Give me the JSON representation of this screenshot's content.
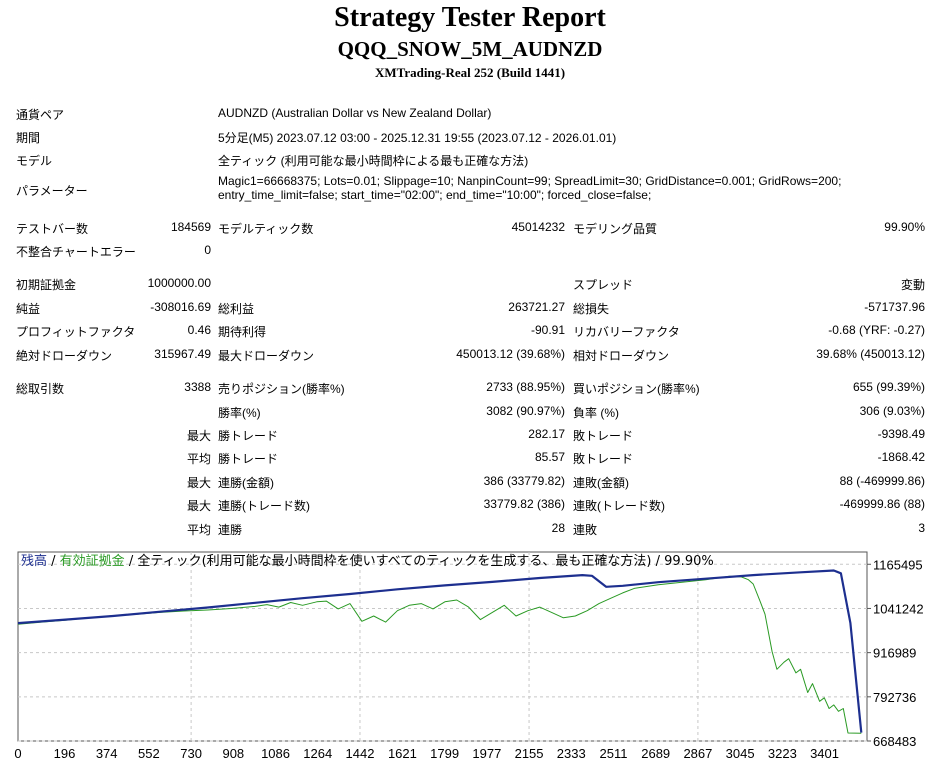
{
  "header": {
    "title": "Strategy Tester Report",
    "subtitle": "QQQ_SNOW_5M_AUDNZD",
    "server": "XMTrading-Real 252 (Build 1441)"
  },
  "info": {
    "pair_label": "通貨ペア",
    "pair_value": "AUDNZD (Australian Dollar vs New Zealand Dollar)",
    "period_label": "期間",
    "period_value": "5分足(M5) 2023.07.12 03:00 - 2025.12.31 19:55 (2023.07.12 - 2026.01.01)",
    "model_label": "モデル",
    "model_value": "全ティック (利用可能な最小時間枠による最も正確な方法)",
    "params_label": "パラメーター",
    "params_line1": "Magic1=66668375; Lots=0.01; Slippage=10; NanpinCount=99; SpreadLimit=30; GridDistance=0.001; GridRows=200;",
    "params_line2": "entry_time_limit=false; start_time=\"02:00\"; end_time=\"10:00\"; forced_close=false;"
  },
  "stats": {
    "bars_label": "テストバー数",
    "bars_value": "184569",
    "ticks_label": "モデルティック数",
    "ticks_value": "45014232",
    "quality_label": "モデリング品質",
    "quality_value": "99.90%",
    "errors_label": "不整合チャートエラー",
    "errors_value": "0",
    "deposit_label": "初期証拠金",
    "deposit_value": "1000000.00",
    "spread_label": "スプレッド",
    "spread_value": "変動",
    "net_label": "純益",
    "net_value": "-308016.69",
    "gross_profit_label": "総利益",
    "gross_profit_value": "263721.27",
    "gross_loss_label": "総損失",
    "gross_loss_value": "-571737.96",
    "pf_label": "プロフィットファクタ",
    "pf_value": "0.46",
    "expected_label": "期待利得",
    "expected_value": "-90.91",
    "recovery_label": "リカバリーファクタ",
    "recovery_value": "-0.68 (YRF: -0.27)",
    "abs_dd_label": "絶対ドローダウン",
    "abs_dd_value": "315967.49",
    "max_dd_label": "最大ドローダウン",
    "max_dd_value": "450013.12 (39.68%)",
    "rel_dd_label": "相対ドローダウン",
    "rel_dd_value": "39.68% (450013.12)",
    "trades_label": "総取引数",
    "trades_value": "3388",
    "short_label": "売りポジション(勝率%)",
    "short_value": "2733 (88.95%)",
    "long_label": "買いポジション(勝率%)",
    "long_value": "655 (99.39%)",
    "winrate_label": "勝率(%)",
    "winrate_value": "3082 (90.97%)",
    "lossrate_label": "負率 (%)",
    "lossrate_value": "306 (9.03%)",
    "max_prefix": "最大",
    "avg_prefix": "平均",
    "max_win_label": "勝トレード",
    "max_win_value": "282.17",
    "max_loss_label": "敗トレード",
    "max_loss_value": "-9398.49",
    "avg_win_label": "勝トレード",
    "avg_win_value": "85.57",
    "avg_loss_label": "敗トレード",
    "avg_loss_value": "-1868.42",
    "max_cons_win_amt_label": "連勝(金額)",
    "max_cons_win_amt_value": "386 (33779.82)",
    "max_cons_loss_amt_label": "連敗(金額)",
    "max_cons_loss_amt_value": "88 (-469999.86)",
    "max_cons_win_trd_label": "連勝(トレード数)",
    "max_cons_win_trd_value": "33779.82 (386)",
    "max_cons_loss_trd_label": "連敗(トレード数)",
    "max_cons_loss_trd_value": "-469999.86 (88)",
    "avg_cons_win_label": "連勝",
    "avg_cons_win_value": "28",
    "avg_cons_loss_label": "連敗",
    "avg_cons_loss_value": "3"
  },
  "chart_data": {
    "type": "line",
    "legend": {
      "balance": "残高",
      "sep1": " / ",
      "equity": "有効証拠金",
      "sep2": " / ",
      "rest": "全ティック(利用可能な最小時間枠を使いすべてのティックを生成する、最も正確な方法) / 99.90%"
    },
    "colors": {
      "balance": "#1d2f8f",
      "equity": "#2a9a24",
      "grid": "#c8c8c8"
    },
    "grid": true,
    "ylim": [
      668483,
      1200000
    ],
    "xlim": [
      0,
      3580
    ],
    "y_ticks": [
      "1165495",
      "1041242",
      "916989",
      "792736",
      "668483"
    ],
    "x_ticks": [
      "0",
      "196",
      "374",
      "552",
      "730",
      "908",
      "1086",
      "1264",
      "1442",
      "1621",
      "1799",
      "1977",
      "2155",
      "2333",
      "2511",
      "2689",
      "2867",
      "3045",
      "3223",
      "3401"
    ],
    "series": [
      {
        "key": "balance",
        "x": [
          0,
          200,
          400,
          600,
          800,
          1000,
          1200,
          1400,
          1600,
          1800,
          2000,
          2200,
          2380,
          2420,
          2480,
          2550,
          2700,
          2900,
          3100,
          3300,
          3440,
          3470,
          3510,
          3556
        ],
        "y": [
          1000000,
          1010000,
          1020000,
          1032000,
          1044000,
          1057000,
          1070000,
          1082000,
          1095000,
          1106000,
          1116000,
          1127000,
          1135000,
          1133000,
          1102000,
          1105000,
          1115000,
          1125000,
          1135000,
          1143000,
          1148000,
          1140000,
          1000000,
          692000
        ]
      },
      {
        "key": "equity",
        "x": [
          0,
          100,
          200,
          300,
          400,
          500,
          600,
          700,
          800,
          900,
          1000,
          1050,
          1100,
          1150,
          1200,
          1260,
          1300,
          1350,
          1400,
          1450,
          1500,
          1550,
          1600,
          1650,
          1700,
          1750,
          1800,
          1850,
          1900,
          1950,
          2000,
          2050,
          2100,
          2150,
          2200,
          2250,
          2300,
          2350,
          2400,
          2450,
          2500,
          2550,
          2600,
          2700,
          2800,
          2900,
          3000,
          3050,
          3080,
          3100,
          3130,
          3150,
          3180,
          3200,
          3230,
          3250,
          3280,
          3300,
          3330,
          3350,
          3380,
          3400,
          3420,
          3440,
          3460,
          3480,
          3500,
          3556
        ],
        "y": [
          997000,
          1003000,
          1008000,
          1015000,
          1021000,
          1025000,
          1030000,
          1034000,
          1037000,
          1041000,
          1047000,
          1052000,
          1045000,
          1058000,
          1050000,
          1060000,
          1062000,
          1040000,
          1055000,
          1005000,
          1020000,
          1003000,
          1035000,
          1050000,
          1055000,
          1040000,
          1060000,
          1065000,
          1045000,
          1010000,
          1030000,
          1050000,
          1020000,
          1035000,
          1045000,
          1030000,
          1015000,
          1020000,
          1035000,
          1055000,
          1070000,
          1085000,
          1098000,
          1108000,
          1115000,
          1122000,
          1132000,
          1130000,
          1122000,
          1110000,
          1060000,
          1025000,
          920000,
          870000,
          890000,
          900000,
          860000,
          870000,
          805000,
          830000,
          780000,
          790000,
          760000,
          770000,
          752000,
          760000,
          691000,
          690000
        ]
      }
    ]
  }
}
